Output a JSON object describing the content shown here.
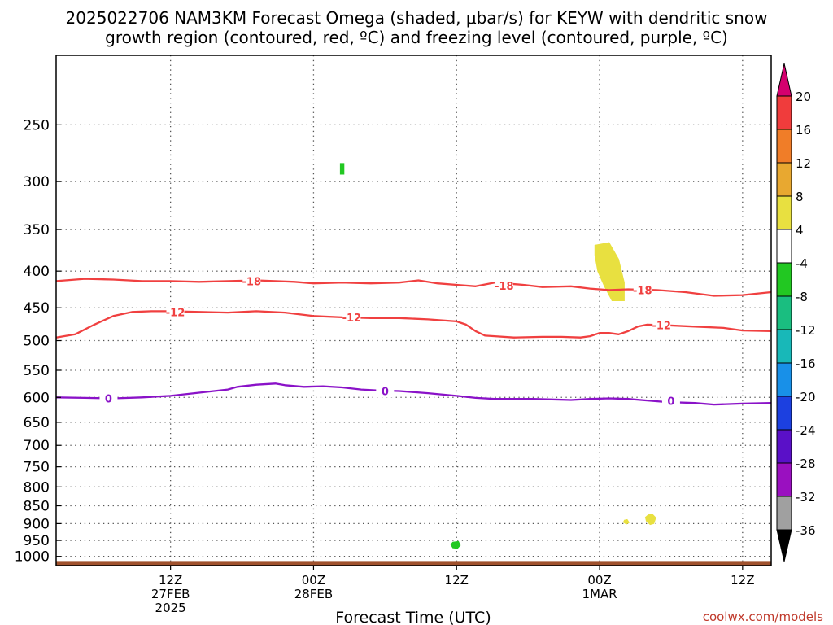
{
  "title_line1": "2025022706 NAM3KM Forecast Omega (shaded, μbar/s) for KEYW with dendritic snow",
  "title_line2": "growth region (contoured, red, ºC) and freezing level (contoured, purple, ºC)",
  "credit": "coolwx.com/models",
  "chart_data": {
    "type": "time-height cross-section",
    "xlabel": "Forecast Time (UTC)",
    "x_range_hours": [
      -6,
      69
    ],
    "x_ticks": [
      {
        "hour": 6,
        "lines": [
          "12Z",
          "27FEB",
          "2025"
        ]
      },
      {
        "hour": 21,
        "lines": [
          "00Z",
          "28FEB"
        ]
      },
      {
        "hour": 36,
        "lines": [
          "12Z"
        ]
      },
      {
        "hour": 51,
        "lines": [
          "00Z",
          "1MAR"
        ]
      },
      {
        "hour": 66,
        "lines": [
          "12Z"
        ]
      }
    ],
    "y_axis": "pressure (hPa), inverted, log scale",
    "y_range": [
      200,
      1030
    ],
    "y_ticks": [
      250,
      300,
      350,
      400,
      450,
      500,
      550,
      600,
      650,
      700,
      750,
      800,
      850,
      900,
      950,
      1000
    ],
    "grid": "dotted",
    "ground_color": "#a0522d",
    "ground_top_hpa": 1015,
    "colorbar": {
      "ticks": [
        "20",
        "16",
        "12",
        "8",
        "4",
        "-4",
        "-8",
        "-12",
        "-16",
        "-20",
        "-24",
        "-28",
        "-32",
        "-36"
      ],
      "bins": [
        {
          "color": "#d4006e"
        },
        {
          "color": "#f03c3c"
        },
        {
          "color": "#f07d28"
        },
        {
          "color": "#e8a830"
        },
        {
          "color": "#e8e040"
        },
        {
          "color": "#ffffff"
        },
        {
          "color": "#22c822"
        },
        {
          "color": "#1abe80"
        },
        {
          "color": "#18b8b8"
        },
        {
          "color": "#1890e8"
        },
        {
          "color": "#1c40e0"
        },
        {
          "color": "#5a10c8"
        },
        {
          "color": "#9a10c0"
        },
        {
          "color": "#a0a0a0"
        },
        {
          "color": "#000000"
        }
      ]
    },
    "contours": [
      {
        "level": "-18",
        "color": "#f04040",
        "points": [
          [
            -6,
            413
          ],
          [
            -3,
            410
          ],
          [
            0,
            411
          ],
          [
            3,
            413
          ],
          [
            6,
            413
          ],
          [
            9,
            414
          ],
          [
            12,
            413
          ],
          [
            15,
            412
          ],
          [
            17,
            413
          ],
          [
            19,
            414
          ],
          [
            21,
            416
          ],
          [
            24,
            415
          ],
          [
            27,
            416
          ],
          [
            30,
            415
          ],
          [
            32,
            412
          ],
          [
            34,
            416
          ],
          [
            36,
            418
          ],
          [
            38,
            420
          ],
          [
            40,
            415
          ],
          [
            43,
            418
          ],
          [
            45,
            421
          ],
          [
            48,
            420
          ],
          [
            50,
            423
          ],
          [
            52,
            425
          ],
          [
            54,
            424
          ],
          [
            57,
            425
          ],
          [
            60,
            428
          ],
          [
            63,
            433
          ],
          [
            66,
            432
          ],
          [
            69,
            428
          ]
        ],
        "labels": [
          [
            14.5,
            413
          ],
          [
            41,
            419
          ],
          [
            55.5,
            425
          ]
        ]
      },
      {
        "level": "-12",
        "color": "#f04040",
        "points": [
          [
            -6,
            495
          ],
          [
            -4,
            490
          ],
          [
            -2,
            475
          ],
          [
            0,
            462
          ],
          [
            2,
            456
          ],
          [
            4,
            455
          ],
          [
            6,
            455
          ],
          [
            9,
            456
          ],
          [
            12,
            457
          ],
          [
            15,
            455
          ],
          [
            18,
            457
          ],
          [
            21,
            462
          ],
          [
            24,
            464
          ],
          [
            27,
            465
          ],
          [
            30,
            465
          ],
          [
            33,
            467
          ],
          [
            36,
            470
          ],
          [
            37,
            475
          ],
          [
            38,
            485
          ],
          [
            39,
            492
          ],
          [
            40,
            493
          ],
          [
            42,
            495
          ],
          [
            45,
            494
          ],
          [
            47,
            494
          ],
          [
            49,
            495
          ],
          [
            50,
            493
          ],
          [
            51,
            488
          ],
          [
            52,
            488
          ],
          [
            53,
            490
          ],
          [
            54,
            485
          ],
          [
            55,
            478
          ],
          [
            56,
            475
          ],
          [
            58,
            476
          ],
          [
            61,
            478
          ],
          [
            64,
            480
          ],
          [
            66,
            484
          ],
          [
            69,
            485
          ]
        ],
        "labels": [
          [
            6.5,
            456
          ],
          [
            25,
            464
          ],
          [
            57.5,
            476
          ]
        ]
      },
      {
        "level": "0",
        "color": "#8a12c8",
        "points": [
          [
            -6,
            600
          ],
          [
            -3,
            601
          ],
          [
            0,
            602
          ],
          [
            3,
            600
          ],
          [
            6,
            597
          ],
          [
            9,
            591
          ],
          [
            12,
            585
          ],
          [
            13,
            580
          ],
          [
            15,
            576
          ],
          [
            17,
            574
          ],
          [
            18,
            577
          ],
          [
            20,
            580
          ],
          [
            22,
            579
          ],
          [
            24,
            581
          ],
          [
            26,
            585
          ],
          [
            28,
            587
          ],
          [
            30,
            588
          ],
          [
            33,
            592
          ],
          [
            36,
            597
          ],
          [
            38,
            601
          ],
          [
            40,
            603
          ],
          [
            42,
            603
          ],
          [
            44,
            603
          ],
          [
            46,
            604
          ],
          [
            48,
            605
          ],
          [
            50,
            603
          ],
          [
            52,
            602
          ],
          [
            54,
            603
          ],
          [
            56,
            606
          ],
          [
            58,
            609
          ],
          [
            61,
            611
          ],
          [
            63,
            614
          ],
          [
            66,
            612
          ],
          [
            69,
            611
          ]
        ],
        "labels": [
          [
            -0.5,
            602
          ],
          [
            28.5,
            588
          ],
          [
            58.5,
            607
          ]
        ]
      }
    ],
    "shaded": [
      {
        "color": "#e8e040",
        "points": [
          [
            50.5,
            368
          ],
          [
            52,
            365
          ],
          [
            53,
            385
          ],
          [
            53.6,
            415
          ],
          [
            53.6,
            440
          ],
          [
            52.3,
            440
          ],
          [
            51.5,
            420
          ],
          [
            50.8,
            400
          ],
          [
            50.5,
            380
          ]
        ]
      },
      {
        "color": "#e8e040",
        "points": [
          [
            56.1,
            875
          ],
          [
            56.5,
            872
          ],
          [
            56.9,
            883
          ],
          [
            56.7,
            900
          ],
          [
            56.3,
            903
          ],
          [
            55.9,
            893
          ],
          [
            55.8,
            882
          ]
        ]
      },
      {
        "color": "#e8e040",
        "points": [
          [
            53.6,
            890
          ],
          [
            53.9,
            888
          ],
          [
            54.1,
            897
          ],
          [
            53.8,
            902
          ],
          [
            53.5,
            896
          ]
        ]
      },
      {
        "color": "#22c822",
        "points": [
          [
            35.6,
            955
          ],
          [
            36.2,
            953
          ],
          [
            36.4,
            965
          ],
          [
            36.1,
            975
          ],
          [
            35.6,
            973
          ],
          [
            35.4,
            963
          ]
        ]
      },
      {
        "color": "#22c822",
        "points": [
          [
            23.8,
            283
          ],
          [
            24.2,
            283
          ],
          [
            24.2,
            293
          ],
          [
            23.8,
            293
          ]
        ]
      }
    ]
  }
}
